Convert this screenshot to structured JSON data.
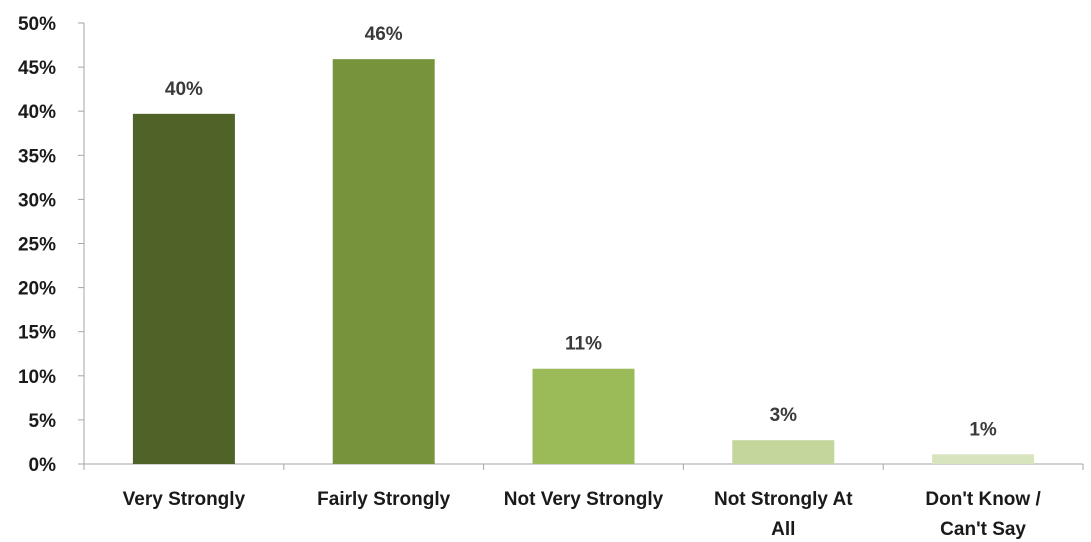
{
  "chart_data": {
    "type": "bar",
    "title": "",
    "xlabel": "",
    "ylabel": "",
    "categories": [
      [
        "Very Strongly"
      ],
      [
        "Fairly Strongly"
      ],
      [
        "Not Very Strongly"
      ],
      [
        "Not Strongly At",
        "All"
      ],
      [
        "Don't Know /",
        "Can't Say"
      ]
    ],
    "values": [
      39.7,
      45.9,
      10.8,
      2.7,
      1.1
    ],
    "data_labels": [
      "40%",
      "46%",
      "11%",
      "3%",
      "1%"
    ],
    "bar_colors": [
      "#4f6228",
      "#77933c",
      "#9bbb59",
      "#c3d69b",
      "#d7e4bd"
    ],
    "ylim": [
      0,
      50
    ],
    "yticks": [
      0,
      5,
      10,
      15,
      20,
      25,
      30,
      35,
      40,
      45,
      50
    ],
    "ytick_labels": [
      "0%",
      "5%",
      "10%",
      "15%",
      "20%",
      "25%",
      "30%",
      "35%",
      "40%",
      "45%",
      "50%"
    ],
    "grid": false,
    "legend": "none"
  }
}
